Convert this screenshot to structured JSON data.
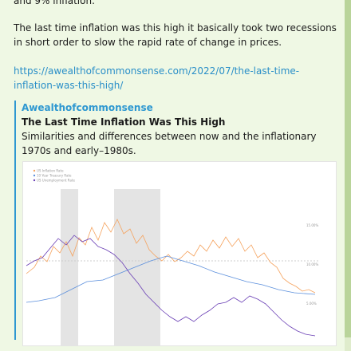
{
  "message": {
    "cut_line": "and 9% inflation.",
    "text": "The last time inflation was this high it basically took two recessions in short order to slow the rapid rate of change in prices.",
    "link": "https://awealthofcommonsense.com/2022/07/the-last-time-inflation-was-this-high/",
    "preview": {
      "site": "Awealthofcommonsense",
      "title": "The Last Time Inflation Was This High",
      "description": "Similarities and differences between now and the inflationary 1970s and early–1980s.",
      "image": {
        "legend": [
          "US Inflation Rate",
          "10 Year Treasury Rate",
          "US Unemployment Rate"
        ],
        "axis_labels": [
          "15.00%",
          "10.00%",
          "5.00%"
        ]
      }
    }
  }
}
